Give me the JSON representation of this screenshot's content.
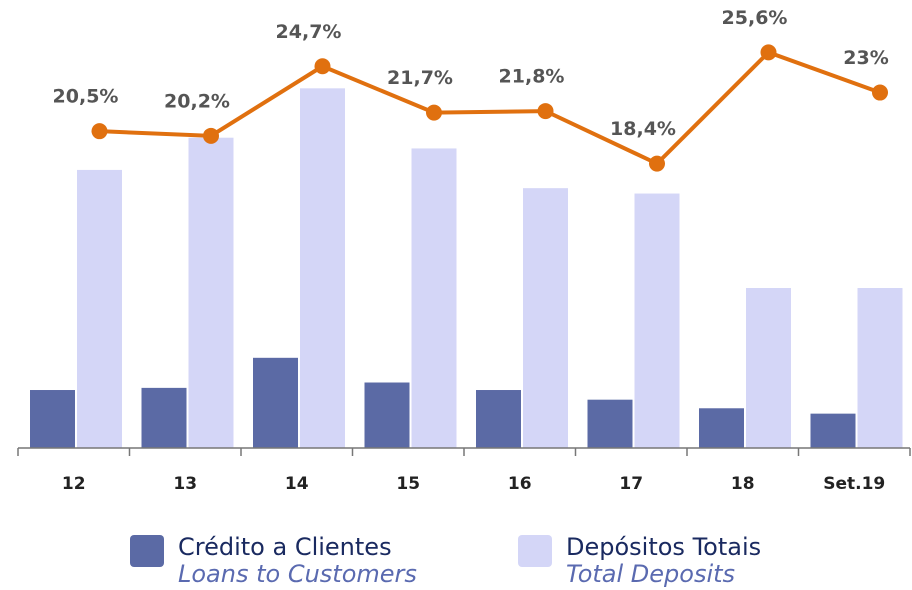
{
  "chart_data": {
    "type": "bar_line",
    "categories": [
      "12",
      "13",
      "14",
      "15",
      "16",
      "17",
      "18",
      "Set.19"
    ],
    "ylim": [
      0,
      380
    ],
    "y2lim": [
      0,
      26.4
    ],
    "series": [
      {
        "name": "Crédito a Clientes",
        "subtitle": "Loans to Customers",
        "color": "#5b6aa5",
        "values": [
          54,
          56,
          84,
          61,
          54,
          45,
          37,
          32
        ]
      },
      {
        "name": "Depósitos Totais",
        "subtitle": "Total Deposits",
        "color": "#d4d6f7",
        "values": [
          259,
          289,
          335,
          279,
          242,
          237,
          149,
          149
        ]
      },
      {
        "type": "line",
        "axis": "y2",
        "color": "#e0700f",
        "values": [
          20.5,
          20.2,
          24.7,
          21.7,
          21.8,
          18.4,
          25.6,
          23
        ],
        "value_labels": [
          "20,5%",
          "20,2%",
          "24,7%",
          "21,7%",
          "21,8%",
          "18,4%",
          "25,6%",
          "23%"
        ]
      }
    ]
  }
}
